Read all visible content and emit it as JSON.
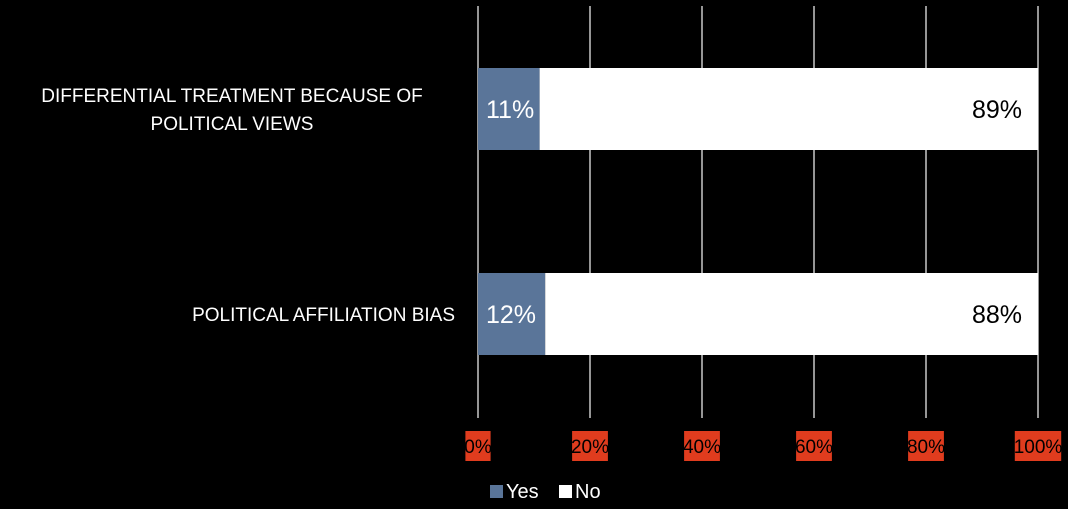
{
  "chart_data": {
    "type": "bar",
    "orientation": "horizontal",
    "stacked": true,
    "percent_stacked": true,
    "categories": [
      [
        "DIFFERENTIAL TREATMENT BECAUSE OF",
        "POLITICAL VIEWS"
      ],
      [
        "POLITICAL AFFILIATION BIAS"
      ]
    ],
    "series": [
      {
        "name": "Yes",
        "color": "#5a7599",
        "label_color": "#ffffff",
        "values": [
          11,
          12
        ],
        "labels": [
          "11%",
          "12%"
        ]
      },
      {
        "name": "No",
        "color": "#ffffff",
        "label_color": "#000000",
        "values": [
          89,
          88
        ],
        "labels": [
          "89%",
          "88%"
        ]
      }
    ],
    "xlim": [
      0,
      100
    ],
    "xticks": [
      0,
      20,
      40,
      60,
      80,
      100
    ],
    "xtick_labels": [
      "0%",
      "20%",
      "40%",
      "60%",
      "80%",
      "100%"
    ],
    "tick_label_background": "#e03c1e",
    "grid": true,
    "grid_color": "#c8c8c8",
    "background": "#000000",
    "legend": {
      "position": "bottom",
      "entries": [
        "Yes",
        "No"
      ]
    },
    "title": "",
    "xlabel": "",
    "ylabel": ""
  }
}
